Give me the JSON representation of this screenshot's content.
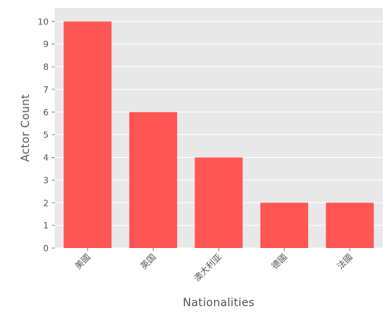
{
  "chart_data": {
    "type": "bar",
    "categories": [
      "美國",
      "英国",
      "澳大利亚",
      "德國",
      "法國"
    ],
    "values": [
      10,
      6,
      4,
      2,
      2
    ],
    "title": "",
    "xlabel": "Nationalities",
    "ylabel": "Actor Count",
    "ylim": [
      0,
      10.6
    ],
    "yticks": [
      0,
      1,
      2,
      3,
      4,
      5,
      6,
      7,
      8,
      9,
      10
    ],
    "grid": true,
    "colors": {
      "bar": "#FF5555",
      "plot_background": "#E8E8E8",
      "grid": "#FFFFFF",
      "text": "#555555"
    }
  }
}
